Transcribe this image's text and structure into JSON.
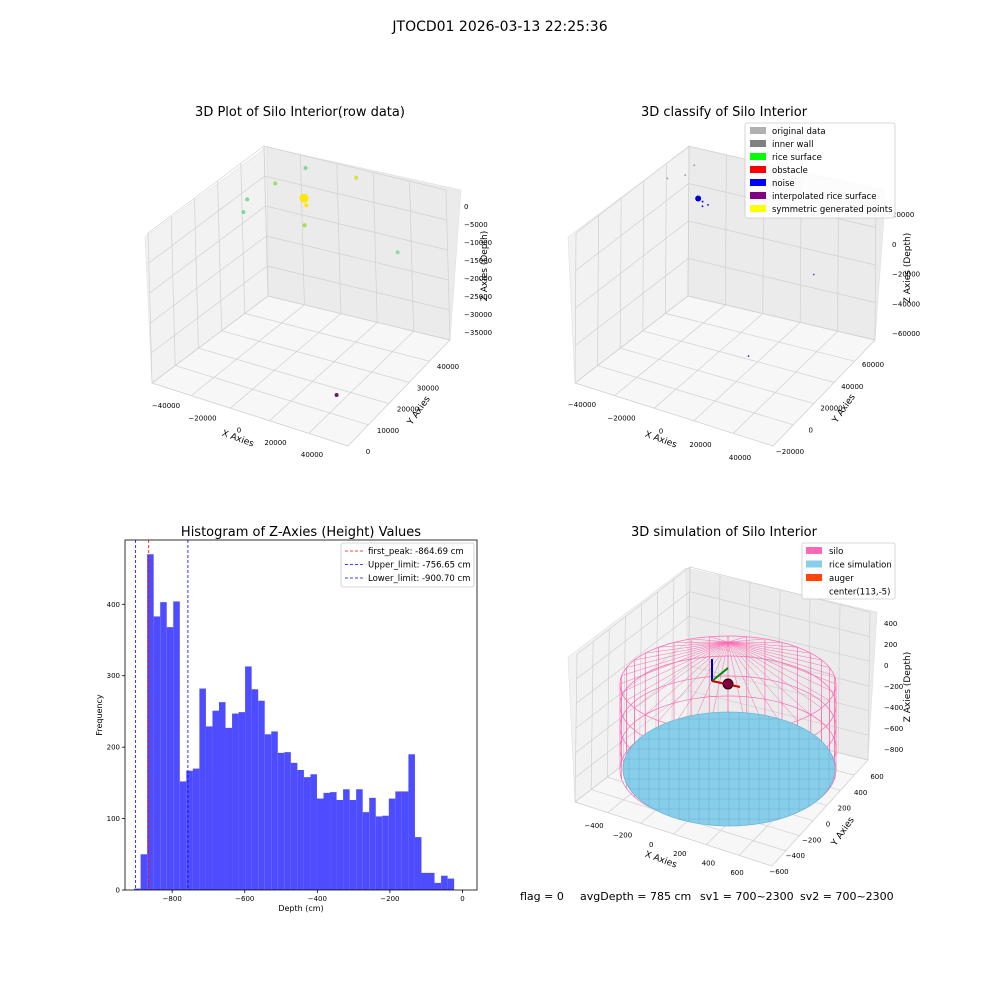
{
  "suptitle": "JTOCD01 2026-03-13 22:25:36",
  "status_line": {
    "flag": "flag = 0",
    "avg_depth": "avgDepth = 785 cm",
    "sv1": "sv1 = 700~2300",
    "sv2": "sv2 = 700~2300"
  },
  "chart_data": [
    {
      "id": "raw",
      "type": "scatter",
      "title": "3D Plot of Silo Interior(row data)",
      "xlabel": "X Axies",
      "ylabel": "Y Axies",
      "zlabel": "Z Axies (Depth)",
      "x_ticks": [
        "−40000",
        "−20000",
        "0",
        "20000",
        "40000"
      ],
      "y_ticks": [
        "0",
        "10000",
        "20000",
        "30000",
        "40000"
      ],
      "z_ticks": [
        "0",
        "−5000",
        "−10000",
        "−15000",
        "−20000",
        "−25000",
        "−30000",
        "−35000"
      ],
      "grid": true,
      "points": [
        {
          "x": -42000,
          "y": 40000,
          "z": -14000,
          "color": "#7fd6a0"
        },
        {
          "x": -41000,
          "y": 41000,
          "z": -11000,
          "color": "#7fd6a0"
        },
        {
          "x": -28000,
          "y": 42000,
          "z": -5000,
          "color": "#9be06a"
        },
        {
          "x": -16000,
          "y": 44000,
          "z": -8000,
          "color": "#ffe800",
          "big": true
        },
        {
          "x": -14000,
          "y": 43000,
          "z": -9000,
          "color": "#ffe800"
        },
        {
          "x": -13000,
          "y": 41000,
          "z": -13000,
          "color": "#a9dc58"
        },
        {
          "x": -18000,
          "y": 47000,
          "z": -2000,
          "color": "#7fd6a0"
        },
        {
          "x": 10000,
          "y": 44000,
          "z": 2000,
          "color": "#d4e23a"
        },
        {
          "x": 44000,
          "y": 30000,
          "z": -4000,
          "color": "#8fd8b0"
        },
        {
          "x": 42000,
          "y": 1000,
          "z": -26000,
          "color": "#6a1a6a"
        }
      ]
    },
    {
      "id": "classify",
      "type": "scatter",
      "title": "3D classify of Silo Interior",
      "xlabel": "X Axies",
      "ylabel": "Y Axies",
      "zlabel": "Z Axies (Depth)",
      "x_ticks": [
        "−40000",
        "−20000",
        "0",
        "20000",
        "40000"
      ],
      "y_ticks": [
        "−20000",
        "0",
        "20000",
        "40000",
        "60000"
      ],
      "z_ticks": [
        "20000",
        "0",
        "−20000",
        "−40000",
        "−60000"
      ],
      "grid": true,
      "legend_position": "top-right",
      "legend": [
        {
          "label": "original data",
          "color": "#b0b0b0"
        },
        {
          "label": "inner wall",
          "color": "#808080"
        },
        {
          "label": "rice surface",
          "color": "#00ff00"
        },
        {
          "label": "obstacle",
          "color": "#ff0000"
        },
        {
          "label": "noise",
          "color": "#0000ff"
        },
        {
          "label": "interpolated rice surface",
          "color": "#800080"
        },
        {
          "label": "symmetric generated points",
          "color": "#ffff00"
        }
      ],
      "points": [
        {
          "x": -29000,
          "y": 52000,
          "z": -2000,
          "color": "#0000cc",
          "big": true
        },
        {
          "x": -27000,
          "y": 52000,
          "z": -3000,
          "color": "#0000cc"
        },
        {
          "x": -26000,
          "y": 50000,
          "z": -4000,
          "color": "#0000cc"
        },
        {
          "x": -24000,
          "y": 51000,
          "z": -3000,
          "color": "#0000cc"
        },
        {
          "x": -38000,
          "y": 58000,
          "z": 4000,
          "color": "#9090c0"
        },
        {
          "x": -42000,
          "y": 50000,
          "z": 6000,
          "color": "#9090c0"
        },
        {
          "x": -36000,
          "y": 62000,
          "z": 8000,
          "color": "#9090c0"
        },
        {
          "x": 2000,
          "y": 58000,
          "z": 6000,
          "color": "#5050a0"
        },
        {
          "x": 40000,
          "y": 20000,
          "z": 4000,
          "color": "#5050a0"
        },
        {
          "x": 28000,
          "y": -14000,
          "z": -26000,
          "color": "#3030a0"
        }
      ]
    },
    {
      "id": "hist",
      "type": "bar",
      "title": "Histogram of Z-Axies (Height) Values",
      "xlabel": "Depth (cm)",
      "ylabel": "Frequency",
      "xlim": [
        -930,
        40
      ],
      "ylim": [
        0,
        490
      ],
      "x_ticks": [
        -800,
        -600,
        -400,
        -200,
        0
      ],
      "x_tick_labels": [
        "−800",
        "−600",
        "−400",
        "−200",
        "0"
      ],
      "y_ticks": [
        0,
        100,
        200,
        300,
        400
      ],
      "y_tick_labels": [
        "0",
        "100",
        "200",
        "300",
        "400"
      ],
      "bin_start": -905,
      "bin_width": 18,
      "values": [
        2,
        50,
        470,
        383,
        403,
        368,
        404,
        152,
        167,
        170,
        282,
        229,
        251,
        263,
        227,
        247,
        249,
        313,
        281,
        265,
        218,
        222,
        192,
        193,
        178,
        168,
        158,
        162,
        128,
        136,
        137,
        126,
        141,
        126,
        141,
        109,
        129,
        103,
        104,
        128,
        138,
        138,
        190,
        74,
        24,
        24,
        10,
        20,
        16
      ],
      "bar_color": "#4d4dff",
      "legend_position": "top-right",
      "lines": [
        {
          "label": "first_peak: -864.69 cm",
          "x": -864.69,
          "color": "#ff0000"
        },
        {
          "label": "Upper_limit: -756.65 cm",
          "x": -756.65,
          "color": "#0000ff"
        },
        {
          "label": "Lower_limit: -900.70 cm",
          "x": -900.7,
          "color": "#0000ff"
        }
      ]
    },
    {
      "id": "sim",
      "type": "surface",
      "title": "3D simulation of Silo Interior",
      "xlabel": "X Axies",
      "ylabel": "Y Axies",
      "zlabel": "Z Axies (Depth)",
      "x_ticks": [
        "−400",
        "−200",
        "0",
        "200",
        "400",
        "600"
      ],
      "y_ticks": [
        "−600",
        "−400",
        "−200",
        "0",
        "200",
        "400",
        "600"
      ],
      "z_ticks": [
        "400",
        "200",
        "0",
        "−200",
        "−400",
        "−600",
        "−800"
      ],
      "grid": true,
      "legend_position": "top-right",
      "legend": [
        {
          "label": "silo",
          "color": "#ff69b4"
        },
        {
          "label": "rice simulation",
          "color": "#87ceeb"
        },
        {
          "label": "auger",
          "color": "#ff4500"
        },
        {
          "label": "center(113,-5)",
          "color": ""
        }
      ]
    }
  ]
}
